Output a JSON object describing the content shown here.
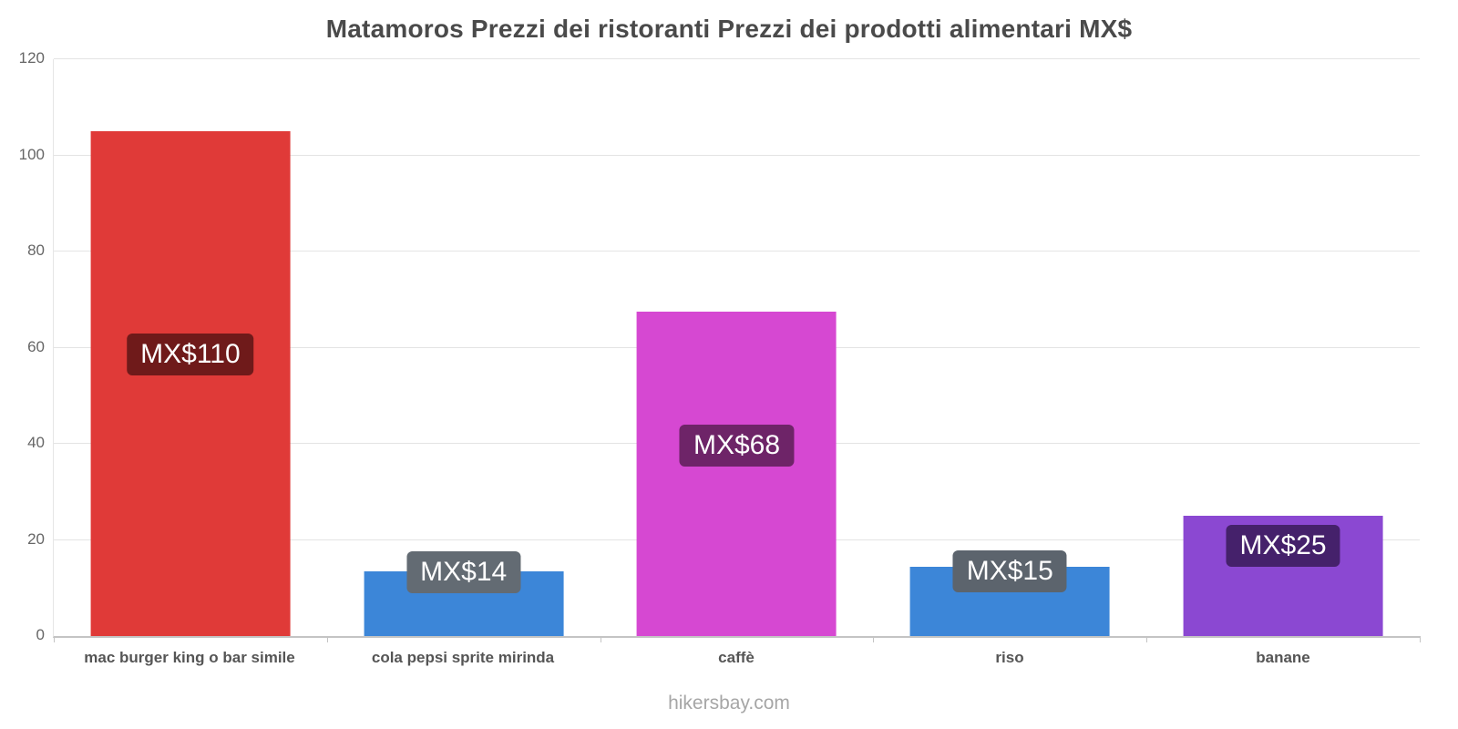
{
  "footer": "hikersbay.com",
  "chart_data": {
    "type": "bar",
    "title": "Matamoros Prezzi dei ristoranti Prezzi dei prodotti alimentari MX$",
    "xlabel": "",
    "ylabel": "",
    "categories": [
      "mac burger king o bar simile",
      "cola pepsi sprite mirinda",
      "caffè",
      "riso",
      "banane"
    ],
    "values": [
      110,
      14,
      68,
      15,
      25
    ],
    "value_labels": [
      "MX$110",
      "MX$14",
      "MX$68",
      "MX$15",
      "MX$25"
    ],
    "bar_drawn_heights": [
      105,
      13.5,
      67.5,
      14.5,
      25
    ],
    "label_center_positions": [
      58.5,
      13.2,
      39.6,
      13.4,
      18.7
    ],
    "bar_colors": [
      "#e03a38",
      "#3c86d8",
      "#d648d2",
      "#3c86d8",
      "#8b48d2"
    ],
    "label_bg_colors": [
      "#6f1a1a",
      "#636b73",
      "#6e2468",
      "#5c646d",
      "#45216b"
    ],
    "ylim": [
      0,
      120
    ],
    "yticks": [
      0,
      20,
      40,
      60,
      80,
      100,
      120
    ],
    "grid": true,
    "legend": "none"
  }
}
